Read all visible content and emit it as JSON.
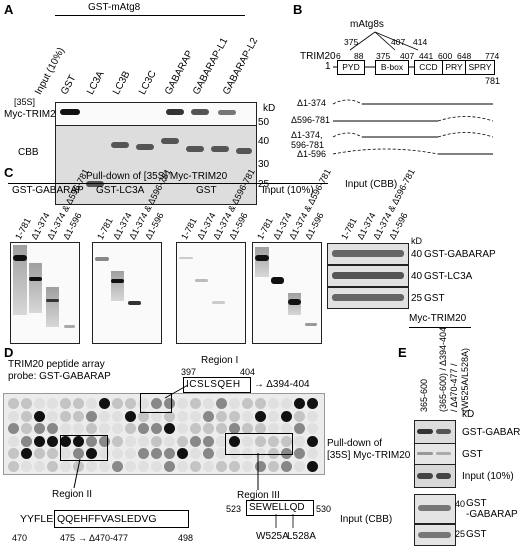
{
  "panels": {
    "a": "A",
    "b": "B",
    "c": "C",
    "d": "D",
    "e": "E"
  },
  "panel_a": {
    "group_label": "GST-mAtg8",
    "lanes": [
      "Input (10%)",
      "GST",
      "LC3A",
      "LC3B",
      "LC3C",
      "GABARAP",
      "GABARAP-L1",
      "GABARAP-L2"
    ],
    "radio_label": "[35S]",
    "row_labels": [
      "Myc-TRIM20",
      "CBB"
    ],
    "kd_label": "kD",
    "markers": [
      "50",
      "40",
      "30",
      "25"
    ]
  },
  "panel_b": {
    "binding_label": "mAtg8s",
    "protein": "TRIM20",
    "positions": [
      "6",
      "88",
      "375",
      "407",
      "414",
      "441",
      "600",
      "648",
      "774"
    ],
    "start": "1",
    "end": "781",
    "domains": [
      "PYD",
      "B-box",
      "CCD",
      "PRY",
      "SPRY"
    ],
    "constructs": [
      "Δ1-374",
      "Δ596-781",
      "Δ1-374,\n596-781",
      "Δ1-596"
    ]
  },
  "panel_c": {
    "header": "Pull-down of [35S] Myc-TRIM20",
    "groups": [
      "GST-GABARAP",
      "GST-LC3A",
      "GST",
      "Input (10%)"
    ],
    "cbb_header": "Input (CBB)",
    "lanes": [
      "1-781",
      "Δ1-374",
      "Δ1-374 & Δ596-781",
      "Δ1-596"
    ],
    "kd_label": "kD",
    "cbb_rows": [
      {
        "mw": "40",
        "label": "GST-GABARAP"
      },
      {
        "mw": "40",
        "label": "GST-LC3A"
      },
      {
        "mw": "25",
        "label": "GST"
      }
    ],
    "footer": "Myc-TRIM20"
  },
  "panel_d": {
    "title_line1": "TRIM20 peptide array",
    "title_line2": "probe: GST-GABARAP",
    "region1": {
      "name": "Region I",
      "start": "397",
      "end": "404",
      "seq": "ICSLSQEH",
      "deletion": "→ Δ394-404"
    },
    "region2": {
      "name": "Region II",
      "seq_prefix": "YYFLE",
      "seq_boxed": "QQEHFFVASLEDVG",
      "start": "470",
      "mid": "475",
      "deletion": "→ Δ470-477",
      "end": "498"
    },
    "region3": {
      "name": "Region III",
      "start": "523",
      "seq": "SEWELLQD",
      "end": "530",
      "mutations": [
        "W525A",
        "L528A"
      ]
    },
    "side_label_line1": "Pull-down of",
    "side_label_line2": "[35S] Myc-TRIM20"
  },
  "panel_e": {
    "lanes": [
      "365-600",
      "(365-600) / Δ394-404 / Δ470-477 / (W525A/L528A)"
    ],
    "kd_label": "kD",
    "rows": [
      "GST-GABARAP",
      "GST",
      "Input (10%)"
    ],
    "cbb_label": "Input (CBB)",
    "cbb_rows": [
      {
        "mw": "40",
        "label": "GST\n-GABARAP"
      },
      {
        "mw": "25",
        "label": "GST"
      }
    ]
  }
}
